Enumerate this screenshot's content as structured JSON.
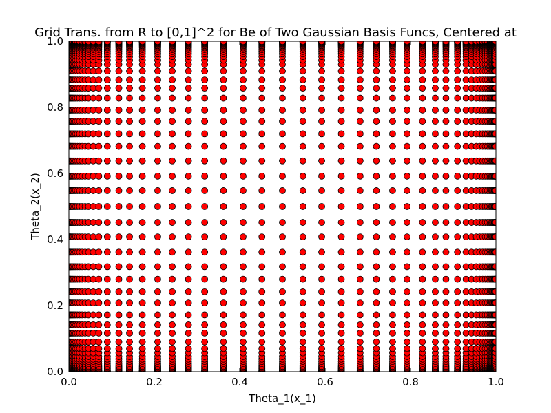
{
  "chart_data": {
    "type": "scatter",
    "title": "Grid Trans. from R to [0,1]^2 for Be of Two Gaussian Basis Funcs, Centered at",
    "xlabel": "Theta_1(x_1)",
    "ylabel": "Theta_2(x_2)",
    "xlim": [
      0.0,
      1.0
    ],
    "ylim": [
      0.0,
      1.0
    ],
    "x_ticks": [
      "0.0",
      "0.2",
      "0.4",
      "0.6",
      "0.8",
      "1.0"
    ],
    "y_ticks": [
      "0.0",
      "0.2",
      "0.4",
      "0.6",
      "0.8",
      "1.0"
    ],
    "grid": false,
    "legend": "none",
    "marker": "circle",
    "marker_color": "#ff0000",
    "marker_edge_color": "#000000",
    "layout": "cartesian-product grid: every x value paired with every y value",
    "x_values": [
      0.0005,
      0.001,
      0.002,
      0.003,
      0.004,
      0.006,
      0.008,
      0.01,
      0.013,
      0.016,
      0.02,
      0.025,
      0.031,
      0.038,
      0.046,
      0.057,
      0.07,
      0.09,
      0.117,
      0.142,
      0.172,
      0.208,
      0.242,
      0.28,
      0.318,
      0.362,
      0.408,
      0.452,
      0.5,
      0.548,
      0.592,
      0.638,
      0.682,
      0.72,
      0.758,
      0.792,
      0.828,
      0.858,
      0.883,
      0.91,
      0.93,
      0.943,
      0.954,
      0.962,
      0.969,
      0.975,
      0.98,
      0.984,
      0.987,
      0.99,
      0.992,
      0.994,
      0.996,
      0.997,
      0.998,
      0.999,
      0.9995
    ],
    "y_values": [
      0.0005,
      0.001,
      0.002,
      0.003,
      0.004,
      0.006,
      0.008,
      0.01,
      0.013,
      0.016,
      0.02,
      0.025,
      0.031,
      0.038,
      0.046,
      0.057,
      0.07,
      0.09,
      0.117,
      0.142,
      0.172,
      0.208,
      0.242,
      0.28,
      0.318,
      0.362,
      0.408,
      0.452,
      0.5,
      0.548,
      0.592,
      0.638,
      0.682,
      0.72,
      0.758,
      0.792,
      0.828,
      0.858,
      0.883,
      0.91,
      0.93,
      0.943,
      0.954,
      0.962,
      0.969,
      0.975,
      0.98,
      0.984,
      0.987,
      0.99,
      0.992,
      0.994,
      0.996,
      0.997,
      0.998,
      0.999,
      0.9995
    ]
  }
}
